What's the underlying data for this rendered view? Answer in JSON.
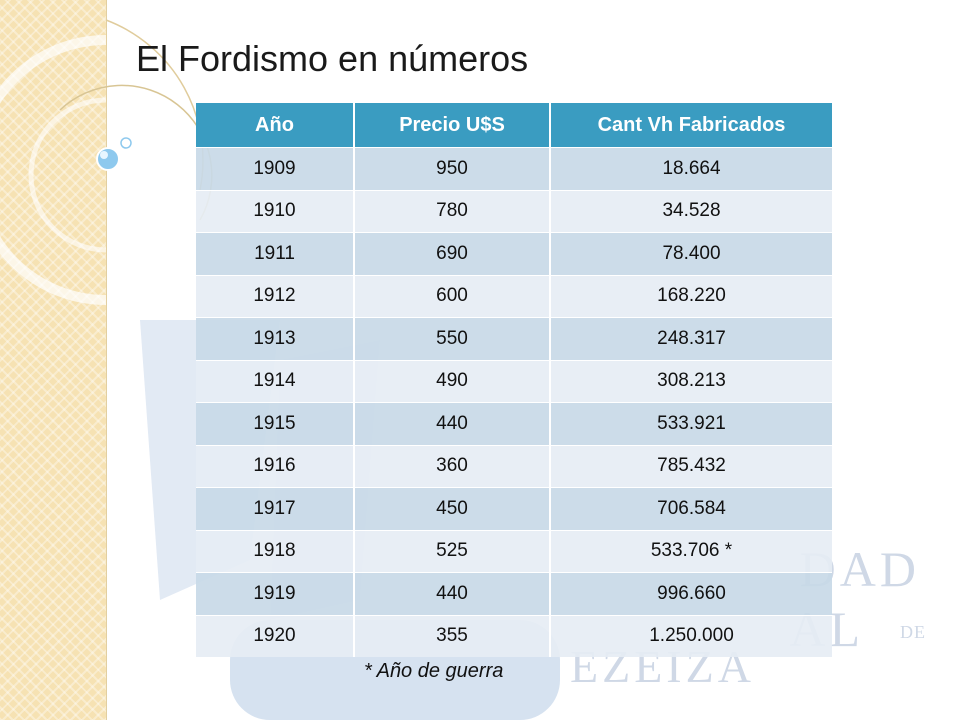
{
  "title": "El Fordismo en números",
  "table": {
    "headers": [
      "Año",
      "Precio U$S",
      "Cant Vh Fabricados"
    ],
    "rows": [
      [
        "1909",
        "950",
        "18.664"
      ],
      [
        "1910",
        "780",
        "34.528"
      ],
      [
        "1911",
        "690",
        "78.400"
      ],
      [
        "1912",
        "600",
        "168.220"
      ],
      [
        "1913",
        "550",
        "248.317"
      ],
      [
        "1914",
        "490",
        "308.213"
      ],
      [
        "1915",
        "440",
        "533.921"
      ],
      [
        "1916",
        "360",
        "785.432"
      ],
      [
        "1917",
        "450",
        "706.584"
      ],
      [
        "1918",
        "525",
        "533.706 *"
      ],
      [
        "1919",
        "440",
        "996.660"
      ],
      [
        "1920",
        "355",
        "1.250.000"
      ]
    ]
  },
  "footnote": "* Año de guerra",
  "watermark": {
    "line1": "DAD",
    "line2": "AL",
    "line2_small": "DE",
    "line3": "EZEIZA"
  },
  "colors": {
    "header_bg": "#3a9cc1",
    "row_odd": "#c8d9e7",
    "row_even": "#e6edf4",
    "side_band": "#f6e2b3"
  }
}
